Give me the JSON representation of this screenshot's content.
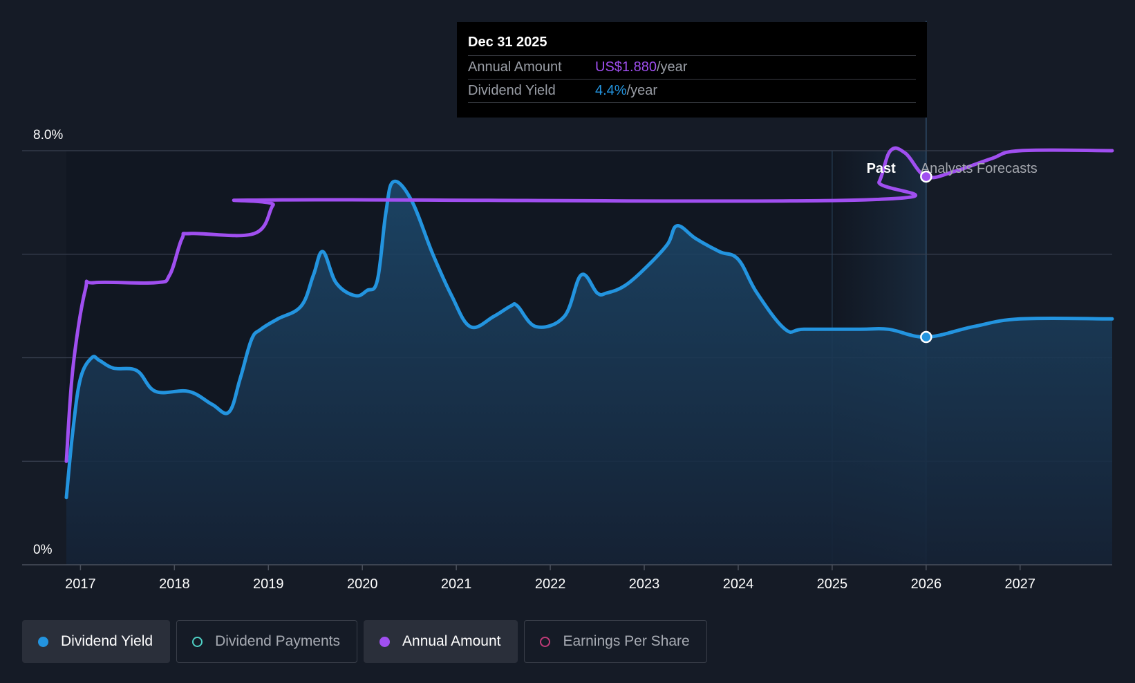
{
  "chart_data": {
    "type": "line",
    "x_range": [
      2016.85,
      2027.98
    ],
    "past_end": 2026.0,
    "forecast_band_start": 2025.0,
    "y_range_pct": [
      0,
      8.0
    ],
    "y_tick_labels": [
      "8.0%",
      "0%"
    ],
    "y_grid_pct": [
      2,
      4,
      6,
      8
    ],
    "x_ticks": [
      {
        "value": 2017.0,
        "label": "2017"
      },
      {
        "value": 2018.0,
        "label": "2018"
      },
      {
        "value": 2019.0,
        "label": "2019"
      },
      {
        "value": 2020.0,
        "label": "2020"
      },
      {
        "value": 2021.0,
        "label": "2021"
      },
      {
        "value": 2022.0,
        "label": "2022"
      },
      {
        "value": 2023.0,
        "label": "2023"
      },
      {
        "value": 2024.0,
        "label": "2024"
      },
      {
        "value": 2025.0,
        "label": "2025"
      },
      {
        "value": 2026.0,
        "label": "2026"
      },
      {
        "value": 2027.0,
        "label": "2027"
      }
    ],
    "series": [
      {
        "name": "Dividend Yield",
        "unit": "%",
        "color": "#2394df",
        "fill": true,
        "points": [
          [
            2016.85,
            1.3
          ],
          [
            2016.92,
            2.6
          ],
          [
            2017.0,
            3.6
          ],
          [
            2017.12,
            4.0
          ],
          [
            2017.2,
            3.95
          ],
          [
            2017.35,
            3.8
          ],
          [
            2017.6,
            3.75
          ],
          [
            2017.8,
            3.35
          ],
          [
            2018.15,
            3.35
          ],
          [
            2018.4,
            3.1
          ],
          [
            2018.58,
            2.95
          ],
          [
            2018.7,
            3.6
          ],
          [
            2018.82,
            4.35
          ],
          [
            2018.92,
            4.55
          ],
          [
            2019.1,
            4.75
          ],
          [
            2019.35,
            5.0
          ],
          [
            2019.48,
            5.6
          ],
          [
            2019.58,
            6.05
          ],
          [
            2019.72,
            5.45
          ],
          [
            2019.92,
            5.2
          ],
          [
            2020.05,
            5.3
          ],
          [
            2020.16,
            5.5
          ],
          [
            2020.25,
            6.8
          ],
          [
            2020.33,
            7.4
          ],
          [
            2020.52,
            7.05
          ],
          [
            2020.75,
            6.0
          ],
          [
            2020.95,
            5.2
          ],
          [
            2021.15,
            4.6
          ],
          [
            2021.4,
            4.8
          ],
          [
            2021.58,
            5.0
          ],
          [
            2021.65,
            5.0
          ],
          [
            2021.85,
            4.6
          ],
          [
            2022.15,
            4.8
          ],
          [
            2022.33,
            5.6
          ],
          [
            2022.5,
            5.25
          ],
          [
            2022.6,
            5.25
          ],
          [
            2022.8,
            5.4
          ],
          [
            2023.05,
            5.8
          ],
          [
            2023.25,
            6.2
          ],
          [
            2023.35,
            6.55
          ],
          [
            2023.55,
            6.3
          ],
          [
            2023.8,
            6.05
          ],
          [
            2024.0,
            5.9
          ],
          [
            2024.2,
            5.25
          ],
          [
            2024.5,
            4.55
          ],
          [
            2024.7,
            4.55
          ],
          [
            2025.3,
            4.55
          ],
          [
            2025.6,
            4.55
          ],
          [
            2026.0,
            4.4
          ],
          [
            2026.5,
            4.6
          ],
          [
            2027.0,
            4.75
          ],
          [
            2027.98,
            4.75
          ]
        ]
      },
      {
        "name": "Annual Amount",
        "unit": "%-scaled",
        "color": "#a04ff0",
        "fill": false,
        "points": [
          [
            2016.85,
            2.0
          ],
          [
            2016.92,
            3.8
          ],
          [
            2017.05,
            5.3
          ],
          [
            2017.15,
            5.45
          ],
          [
            2017.8,
            5.45
          ],
          [
            2017.95,
            5.6
          ],
          [
            2018.08,
            6.3
          ],
          [
            2018.18,
            6.4
          ],
          [
            2018.85,
            6.4
          ],
          [
            2019.05,
            6.95
          ],
          [
            2019.15,
            7.05
          ],
          [
            2025.35,
            7.05
          ],
          [
            2025.5,
            7.4
          ],
          [
            2025.62,
            8.0
          ],
          [
            2025.78,
            7.95
          ],
          [
            2026.0,
            7.5
          ],
          [
            2026.3,
            7.6
          ],
          [
            2026.7,
            7.85
          ],
          [
            2027.0,
            8.0
          ],
          [
            2027.98,
            8.0
          ]
        ]
      }
    ],
    "markers": [
      {
        "series": "Dividend Yield",
        "x": 2026.0,
        "y": 4.4
      },
      {
        "series": "Annual Amount",
        "x": 2026.0,
        "y": 7.5
      }
    ],
    "region_labels": {
      "past": "Past",
      "forecast": "Analysts Forecasts"
    }
  },
  "tooltip": {
    "date": "Dec 31 2025",
    "rows": [
      {
        "label": "Annual Amount",
        "value": "US$1.880",
        "suffix": "/year",
        "color": "#a04ff0"
      },
      {
        "label": "Dividend Yield",
        "value": "4.4%",
        "suffix": "/year",
        "color": "#2394df"
      }
    ]
  },
  "legend": [
    {
      "label": "Dividend Yield",
      "color": "#2394df",
      "active": true,
      "filled": true
    },
    {
      "label": "Dividend Payments",
      "color": "#4fd1c5",
      "active": false,
      "filled": false
    },
    {
      "label": "Annual Amount",
      "color": "#a04ff0",
      "active": true,
      "filled": true
    },
    {
      "label": "Earnings Per Share",
      "color": "#c13b78",
      "active": false,
      "filled": false
    }
  ]
}
